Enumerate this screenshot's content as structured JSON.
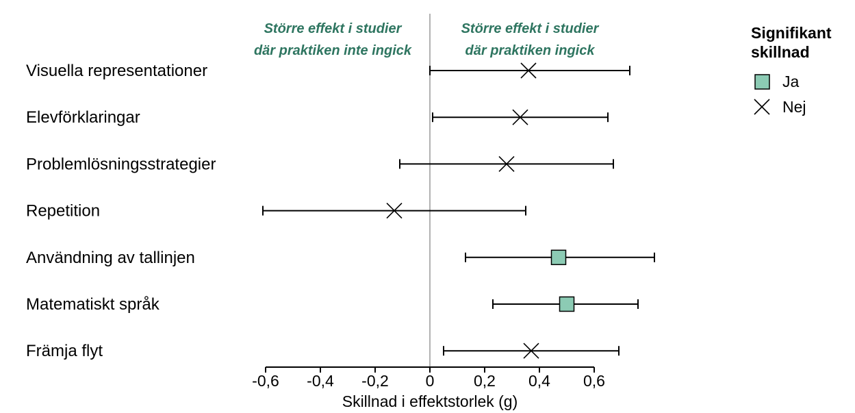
{
  "chart_data": {
    "type": "forest-plot",
    "title": "",
    "xlabel": "Skillnad i effektstorlek (g)",
    "xlim": [
      -0.6,
      0.6
    ],
    "xticks": [
      -0.6,
      -0.4,
      -0.2,
      0,
      0.2,
      0.4,
      0.6
    ],
    "xtick_labels": [
      "-0,6",
      "-0,4",
      "-0,2",
      "0",
      "0,2",
      "0,4",
      "0,6"
    ],
    "reference_line": 0,
    "annotations": {
      "left": [
        "Större effekt i studier",
        "där praktiken inte ingick"
      ],
      "right": [
        "Större effekt i studier",
        "där praktiken ingick"
      ]
    },
    "legend": {
      "title": [
        "Signifikant",
        "skillnad"
      ],
      "items": [
        {
          "label": "Ja",
          "marker": "square"
        },
        {
          "label": "Nej",
          "marker": "x"
        }
      ]
    },
    "rows": [
      {
        "label": "Visuella representationer",
        "estimate": 0.36,
        "lower": 0.0,
        "upper": 0.73,
        "significant": false
      },
      {
        "label": "Elevförklaringar",
        "estimate": 0.33,
        "lower": 0.01,
        "upper": 0.65,
        "significant": false
      },
      {
        "label": "Problemlösningsstrategier",
        "estimate": 0.28,
        "lower": -0.11,
        "upper": 0.67,
        "significant": false
      },
      {
        "label": "Repetition",
        "estimate": -0.13,
        "lower": -0.61,
        "upper": 0.35,
        "significant": false
      },
      {
        "label": "Användning av tallinjen",
        "estimate": 0.47,
        "lower": 0.13,
        "upper": 0.82,
        "significant": true
      },
      {
        "label": "Matematiskt språk",
        "estimate": 0.5,
        "lower": 0.23,
        "upper": 0.76,
        "significant": true
      },
      {
        "label": "Främja flyt",
        "estimate": 0.37,
        "lower": 0.05,
        "upper": 0.69,
        "significant": false
      }
    ]
  },
  "colors": {
    "significant_fill": "#8ccbb4",
    "annotation": "#2e7560",
    "reference_line": "#999999",
    "ink": "#000000"
  }
}
